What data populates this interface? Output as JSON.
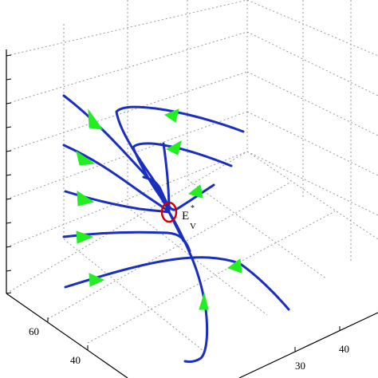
{
  "chart_data": {
    "type": "line",
    "title": "",
    "xlabel": "",
    "ylabel": "",
    "zlabel": "",
    "grid": true,
    "legend": null,
    "x_ticks": [
      "30",
      "40"
    ],
    "y_ticks": [
      "40",
      "60"
    ],
    "z_ticks": [],
    "equilibrium": {
      "label": "E",
      "subscript": "V",
      "superscript": "*",
      "marker": "open-circle",
      "color": "#d40000"
    },
    "colors": {
      "trajectory": "#1a2fbf",
      "arrow": "#22ee22",
      "equilibrium": "#d40000",
      "grid": "#9a9a9a",
      "axes": "#000000"
    },
    "trajectories": [
      {
        "id": "t1"
      },
      {
        "id": "t2"
      },
      {
        "id": "t3"
      },
      {
        "id": "t4"
      },
      {
        "id": "t5"
      },
      {
        "id": "t6"
      },
      {
        "id": "t7"
      },
      {
        "id": "t8"
      },
      {
        "id": "t9"
      },
      {
        "id": "t10"
      },
      {
        "id": "t11"
      }
    ]
  }
}
